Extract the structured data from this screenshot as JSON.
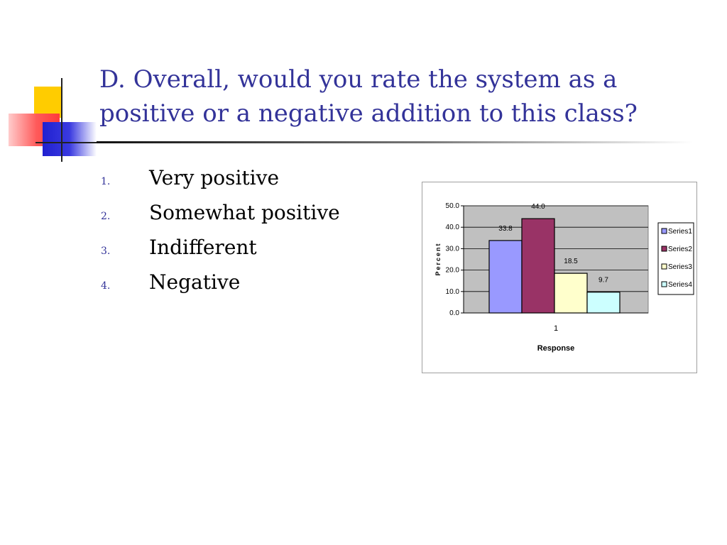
{
  "slide": {
    "title_lines": [
      "D. Overall, would you rate the system as a",
      "positive or a negative addition to this class?"
    ],
    "options": [
      {
        "number": "1.",
        "text": "Very positive"
      },
      {
        "number": "2.",
        "text": "Somewhat positive"
      },
      {
        "number": "3.",
        "text": "Indifferent"
      },
      {
        "number": "4.",
        "text": "Negative"
      }
    ],
    "colors": {
      "title": "#333399",
      "accent_yellow": "#ffcc00",
      "accent_red": "#ff3a3a",
      "accent_blue": "#2020d0"
    }
  },
  "chart_data": {
    "type": "bar",
    "categories": [
      "1"
    ],
    "series": [
      {
        "name": "Series1",
        "values": [
          33.8
        ],
        "label": "33.8",
        "color": "#9999ff"
      },
      {
        "name": "Series2",
        "values": [
          44.0
        ],
        "label": "44.0",
        "color": "#993366"
      },
      {
        "name": "Series3",
        "values": [
          18.5
        ],
        "label": "18.5",
        "color": "#ffffcc"
      },
      {
        "name": "Series4",
        "values": [
          9.7
        ],
        "label": "9.7",
        "color": "#ccffff"
      }
    ],
    "xlabel": "Response",
    "ylabel": "Percent",
    "ylim": [
      0,
      50
    ],
    "yticks": [
      "0.0",
      "10.0",
      "20.0",
      "30.0",
      "40.0",
      "50.0"
    ],
    "plot_background": "#c0c0c0",
    "grid": true,
    "legend": "right"
  }
}
